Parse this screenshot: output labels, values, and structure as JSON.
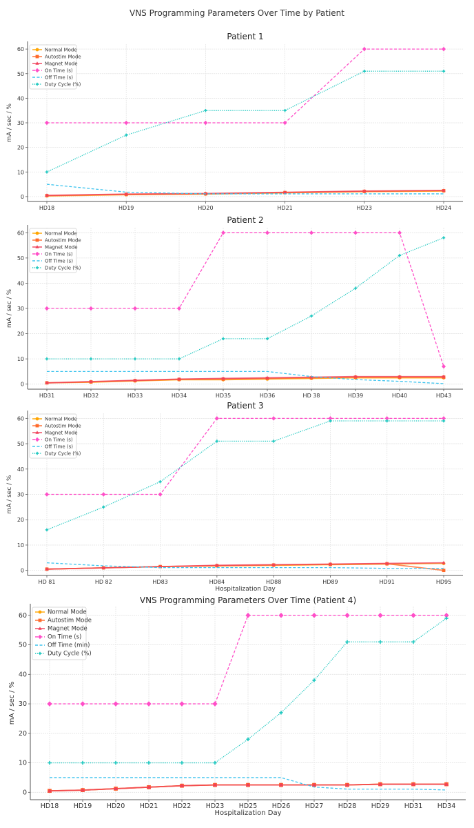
{
  "figure_title": "VNS Programming Parameters Over Time by Patient",
  "chart_data": [
    {
      "type": "line",
      "title": "Patient 1",
      "xlabel": "",
      "ylabel": "mA / sec / %",
      "ylim": [
        -2,
        62
      ],
      "yticks": [
        0,
        10,
        20,
        30,
        40,
        50,
        60
      ],
      "grid": true,
      "legend_position": "top-left",
      "categories": [
        "HD18",
        "HD19",
        "HD20",
        "HD21",
        "HD23",
        "HD24"
      ],
      "series": [
        {
          "name": "Normal Mode",
          "color": "#ffa500",
          "style": "solid",
          "marker": "circle",
          "values": [
            0.25,
            0.75,
            1.0,
            1.5,
            2.0,
            2.25
          ]
        },
        {
          "name": "Autostim Mode",
          "color": "#ff6a2a",
          "style": "solid",
          "marker": "square",
          "values": [
            0.375,
            0.875,
            1.125,
            1.625,
            2.125,
            2.375
          ]
        },
        {
          "name": "Magnet Mode",
          "color": "#f0405a",
          "style": "solid",
          "marker": "triangle",
          "values": [
            0.5,
            1.0,
            1.25,
            1.75,
            2.25,
            2.5
          ]
        },
        {
          "name": "On Time (s)",
          "color": "#ff4fc8",
          "style": "dashed",
          "marker": "diamond",
          "values": [
            30,
            30,
            30,
            30,
            60,
            60
          ]
        },
        {
          "name": "Off Time (s)",
          "color": "#3ec4ee",
          "style": "dashed",
          "marker": "none",
          "values": [
            5,
            1.8,
            1.1,
            1.1,
            1.1,
            1.1
          ]
        },
        {
          "name": "Duty Cycle (%)",
          "color": "#1fc8c0",
          "style": "dotted",
          "marker": "plus",
          "values": [
            10,
            25,
            35,
            35,
            51,
            51
          ]
        }
      ]
    },
    {
      "type": "line",
      "title": "Patient 2",
      "xlabel": "",
      "ylabel": "mA / sec / %",
      "ylim": [
        -2,
        62
      ],
      "yticks": [
        0,
        10,
        20,
        30,
        40,
        50,
        60
      ],
      "grid": true,
      "legend_position": "top-left",
      "categories": [
        "HD31",
        "HD32",
        "HD33",
        "HD34",
        "HD35",
        "HD36",
        "HD 38",
        "HD39",
        "HD40",
        "HD43"
      ],
      "series": [
        {
          "name": "Normal Mode",
          "color": "#ffa500",
          "style": "solid",
          "marker": "circle",
          "values": [
            0.5,
            0.75,
            1.25,
            1.75,
            1.75,
            2.0,
            2.25,
            2.5,
            2.5,
            2.5
          ]
        },
        {
          "name": "Autostim Mode",
          "color": "#ff6a2a",
          "style": "solid",
          "marker": "square",
          "values": [
            0.5,
            0.875,
            1.375,
            1.875,
            2.0,
            2.25,
            2.5,
            2.75,
            2.75,
            2.75
          ]
        },
        {
          "name": "Magnet Mode",
          "color": "#f0405a",
          "style": "solid",
          "marker": "triangle",
          "values": [
            0.5,
            1.0,
            1.5,
            2.0,
            2.25,
            2.5,
            2.75,
            3.0,
            3.0,
            3.0
          ]
        },
        {
          "name": "On Time (s)",
          "color": "#ff4fc8",
          "style": "dashed",
          "marker": "diamond",
          "values": [
            30,
            30,
            30,
            30,
            60,
            60,
            60,
            60,
            60,
            7
          ]
        },
        {
          "name": "Off Time (s)",
          "color": "#3ec4ee",
          "style": "dashed",
          "marker": "none",
          "values": [
            5,
            5,
            5,
            5,
            5,
            5,
            3,
            1.8,
            1.1,
            0.2
          ]
        },
        {
          "name": "Duty Cycle (%)",
          "color": "#1fc8c0",
          "style": "dotted",
          "marker": "plus",
          "values": [
            10,
            10,
            10,
            10,
            18,
            18,
            27,
            38,
            51,
            58
          ]
        }
      ]
    },
    {
      "type": "line",
      "title": "Patient 3",
      "xlabel": "Hospitalization Day",
      "ylabel": "mA / sec / %",
      "ylim": [
        -2,
        62
      ],
      "yticks": [
        0,
        10,
        20,
        30,
        40,
        50,
        60
      ],
      "grid": true,
      "legend_position": "top-left",
      "categories": [
        "HD 81",
        "HD 82",
        "HD83",
        "HD84",
        "HD88",
        "HD89",
        "HD91",
        "HD95"
      ],
      "series": [
        {
          "name": "Normal Mode",
          "color": "#ffa500",
          "style": "solid",
          "marker": "circle",
          "values": [
            0.5,
            1.0,
            1.5,
            1.75,
            2.0,
            2.25,
            2.5,
            2.75
          ]
        },
        {
          "name": "Autostim Mode",
          "color": "#ff6a2a",
          "style": "solid",
          "marker": "square",
          "values": [
            0.5,
            1.0,
            1.5,
            1.875,
            2.125,
            2.375,
            2.625,
            0
          ]
        },
        {
          "name": "Magnet Mode",
          "color": "#f0405a",
          "style": "solid",
          "marker": "triangle",
          "values": [
            0.5,
            1.0,
            1.5,
            2.0,
            2.25,
            2.5,
            2.75,
            3.0
          ]
        },
        {
          "name": "On Time (s)",
          "color": "#ff4fc8",
          "style": "dashed",
          "marker": "diamond",
          "values": [
            30,
            30,
            30,
            60,
            60,
            60,
            60,
            60
          ]
        },
        {
          "name": "Off Time (s)",
          "color": "#3ec4ee",
          "style": "dashed",
          "marker": "none",
          "values": [
            3,
            1.8,
            1.1,
            1.1,
            1.1,
            1.1,
            0.8,
            0.8
          ]
        },
        {
          "name": "Duty Cycle (%)",
          "color": "#1fc8c0",
          "style": "dotted",
          "marker": "plus",
          "values": [
            16,
            25,
            35,
            51,
            51,
            59,
            59,
            59
          ]
        }
      ]
    },
    {
      "type": "line",
      "title": "VNS Programming Parameters Over Time (Patient 4)",
      "xlabel": "Hospitalization Day",
      "ylabel": "mA / sec / %",
      "ylim": [
        -2.5,
        63
      ],
      "yticks": [
        0,
        10,
        20,
        30,
        40,
        50,
        60
      ],
      "grid": true,
      "legend_position": "top-left",
      "categories": [
        "HD18",
        "HD19",
        "HD20",
        "HD21",
        "HD22",
        "HD23",
        "HD25",
        "HD26",
        "HD27",
        "HD28",
        "HD29",
        "HD31",
        "HD34"
      ],
      "series": [
        {
          "name": "Normal Mode",
          "color": "#ffa500",
          "style": "solid",
          "marker": "circle",
          "values": [
            0.5,
            0.75,
            1.25,
            1.75,
            2.25,
            2.5,
            2.5,
            2.5,
            2.5,
            2.5,
            2.75,
            2.75,
            2.75
          ]
        },
        {
          "name": "Autostim Mode",
          "color": "#ff6a2a",
          "style": "solid",
          "marker": "square",
          "values": [
            0.5,
            0.75,
            1.25,
            1.75,
            2.25,
            2.5,
            2.5,
            2.5,
            2.5,
            2.5,
            2.75,
            2.75,
            2.75
          ]
        },
        {
          "name": "Magnet Mode",
          "color": "#f0405a",
          "style": "solid",
          "marker": "triangle",
          "values": [
            0.5,
            0.75,
            1.25,
            1.75,
            2.25,
            2.5,
            2.5,
            2.5,
            2.5,
            2.5,
            2.75,
            2.75,
            2.75
          ]
        },
        {
          "name": "On Time (s)",
          "color": "#ff4fc8",
          "style": "dashed",
          "marker": "diamond",
          "values": [
            30,
            30,
            30,
            30,
            30,
            30,
            60,
            60,
            60,
            60,
            60,
            60,
            60
          ]
        },
        {
          "name": "Off Time (min)",
          "color": "#3ec4ee",
          "style": "dashed",
          "marker": "none",
          "values": [
            5,
            5,
            5,
            5,
            5,
            5,
            5,
            5,
            1.8,
            1.1,
            1.1,
            1.1,
            0.8
          ]
        },
        {
          "name": "Duty Cycle (%)",
          "color": "#1fc8c0",
          "style": "dotted",
          "marker": "plus",
          "values": [
            10,
            10,
            10,
            10,
            10,
            10,
            18,
            27,
            38,
            51,
            51,
            51,
            59
          ]
        }
      ]
    }
  ]
}
